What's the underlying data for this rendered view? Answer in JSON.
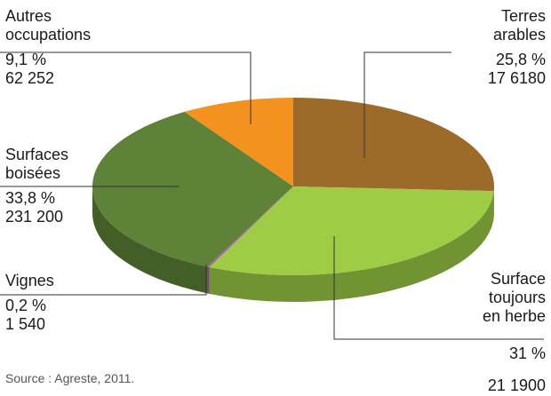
{
  "chart_data": {
    "type": "pie",
    "style": "3d",
    "source": "Source : Agreste, 2011.",
    "slices": [
      {
        "name_lines": [
          "Terres",
          "arables"
        ],
        "percent_label": "25,8 %",
        "value_label": "17 6180",
        "percent": 25.8,
        "color": "#9c6b2a"
      },
      {
        "name_lines": [
          "Surface",
          "toujours",
          "en herbe"
        ],
        "percent_label": "31 %",
        "value_label": "21 1900",
        "percent": 31.0,
        "color": "#9fcc45"
      },
      {
        "name_lines": [
          "Vignes"
        ],
        "percent_label": "0,2 %",
        "value_label": "1 540",
        "percent": 0.2,
        "color": "#b05ab5"
      },
      {
        "name_lines": [
          "Surfaces",
          "boisées"
        ],
        "percent_label": "33,8 %",
        "value_label": "231 200",
        "percent": 33.8,
        "color": "#5e8238"
      },
      {
        "name_lines": [
          "Autres",
          "occupations"
        ],
        "percent_label": "9,1 %",
        "value_label": "62 252",
        "percent": 9.1,
        "color": "#f3921e"
      }
    ]
  }
}
